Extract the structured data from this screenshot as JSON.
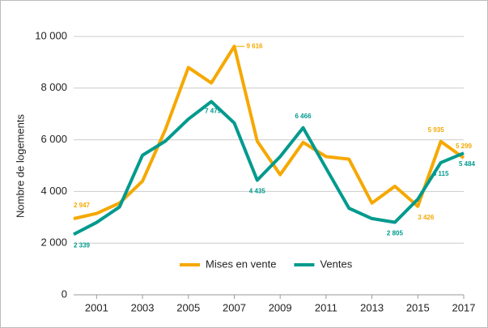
{
  "chart_data": {
    "type": "line",
    "ylabel": "Nombre de logements",
    "x": [
      2000,
      2001,
      2002,
      2003,
      2004,
      2005,
      2006,
      2007,
      2008,
      2009,
      2010,
      2011,
      2012,
      2013,
      2014,
      2015,
      2016,
      2017
    ],
    "xlim": [
      2000,
      2017
    ],
    "xticks": [
      2001,
      2003,
      2005,
      2007,
      2009,
      2011,
      2013,
      2015,
      2017
    ],
    "ylim": [
      0,
      10000
    ],
    "yticks": [
      0,
      {
        "value": 2000,
        "label": "2 000"
      },
      {
        "value": 4000,
        "label": "4 000"
      },
      {
        "value": 6000,
        "label": "6 000"
      },
      {
        "value": 8000,
        "label": "8 000"
      },
      {
        "value": 10000,
        "label": "10 000"
      }
    ],
    "grid": true,
    "legend": "bottom",
    "series": [
      {
        "name": "Mises en vente",
        "color": "#f5a800",
        "values": [
          2947,
          3150,
          3550,
          4400,
          6400,
          8800,
          8200,
          9616,
          5950,
          4650,
          5900,
          5350,
          5250,
          3550,
          4200,
          3426,
          5935,
          5299
        ],
        "value_labels": [
          "2 947",
          null,
          null,
          null,
          null,
          null,
          null,
          "9 616",
          null,
          null,
          null,
          null,
          null,
          null,
          null,
          "3 426",
          "5 935",
          "5 299"
        ]
      },
      {
        "name": "Ventes",
        "color": "#009a8e",
        "values": [
          2339,
          2800,
          3400,
          5400,
          5950,
          6800,
          7479,
          6650,
          4435,
          5350,
          6466,
          4900,
          3350,
          2950,
          2805,
          3700,
          5115,
          5484
        ],
        "value_labels": [
          "2 339",
          null,
          null,
          null,
          null,
          null,
          "7 479",
          null,
          "4 435",
          null,
          "6 466",
          null,
          null,
          null,
          "2 805",
          null,
          "5 115",
          "5 484"
        ]
      }
    ]
  }
}
